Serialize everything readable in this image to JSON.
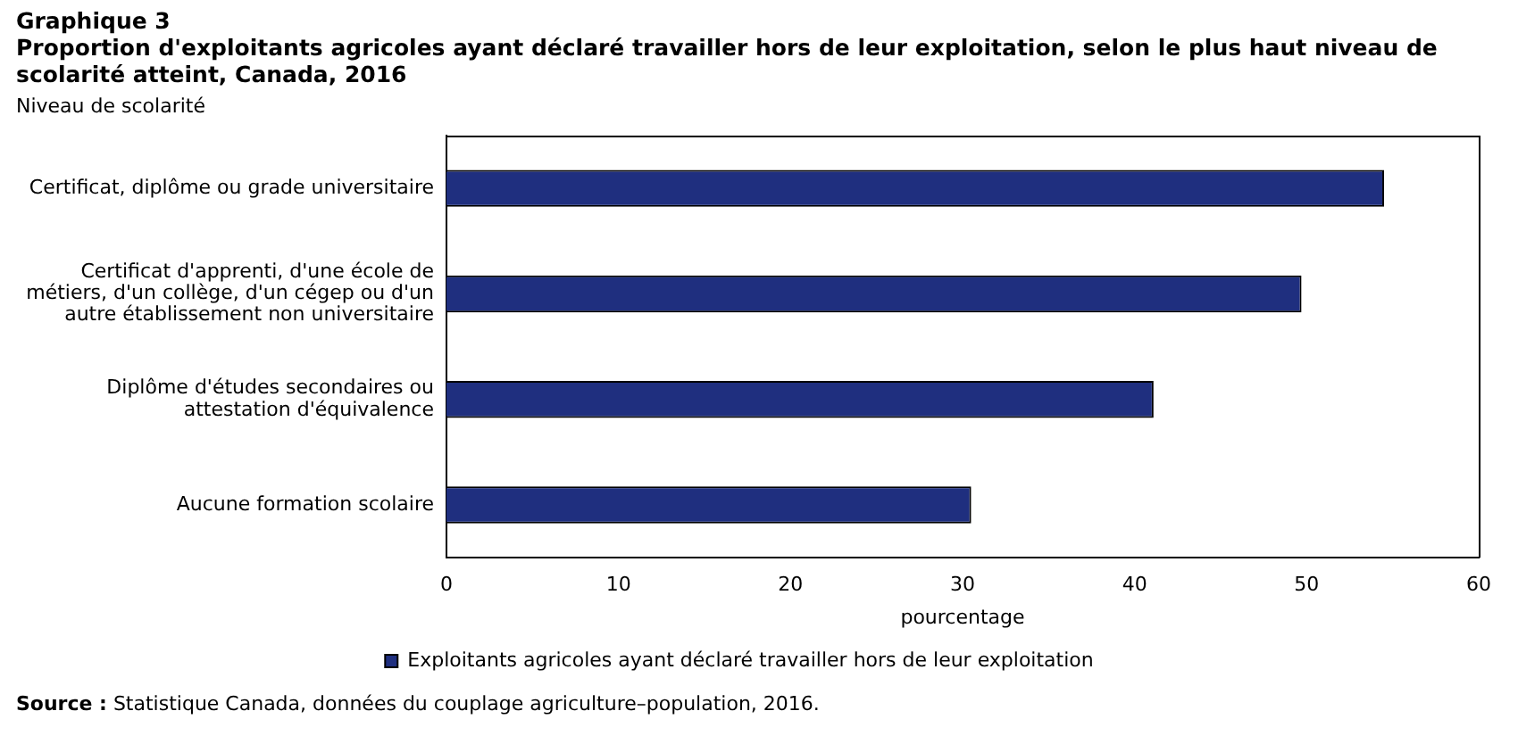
{
  "chart_data": {
    "type": "bar",
    "orientation": "horizontal",
    "title": "Graphique  3",
    "subtitle": "Proportion d'exploitants agricoles ayant déclaré travailler hors de leur exploitation, selon le plus haut niveau de scolarité atteint, Canada, 2016",
    "ylabel": "Niveau de scolarité",
    "xlabel": "pourcentage",
    "categories": [
      "Certificat, diplôme ou grade universitaire",
      "Certificat d'apprenti, d'une école de métiers, d'un collège, d'un cégep ou d'un autre établissement non universitaire",
      "Diplôme d'études secondaires ou attestation d'équivalence",
      "Aucune formation scolaire"
    ],
    "series": [
      {
        "name": "Exploitants agricoles ayant déclaré travailler hors de leur exploitation",
        "color": "#1f2f7f",
        "values": [
          54.5,
          49.7,
          41.1,
          30.5
        ]
      }
    ],
    "xlim": [
      0,
      60
    ],
    "xticks": [
      0,
      10,
      20,
      30,
      40,
      50,
      60
    ],
    "grid": false,
    "legend": "bottom",
    "annotations": [
      "Source : Statistique Canada, données du couplage agriculture–population, 2016."
    ]
  }
}
